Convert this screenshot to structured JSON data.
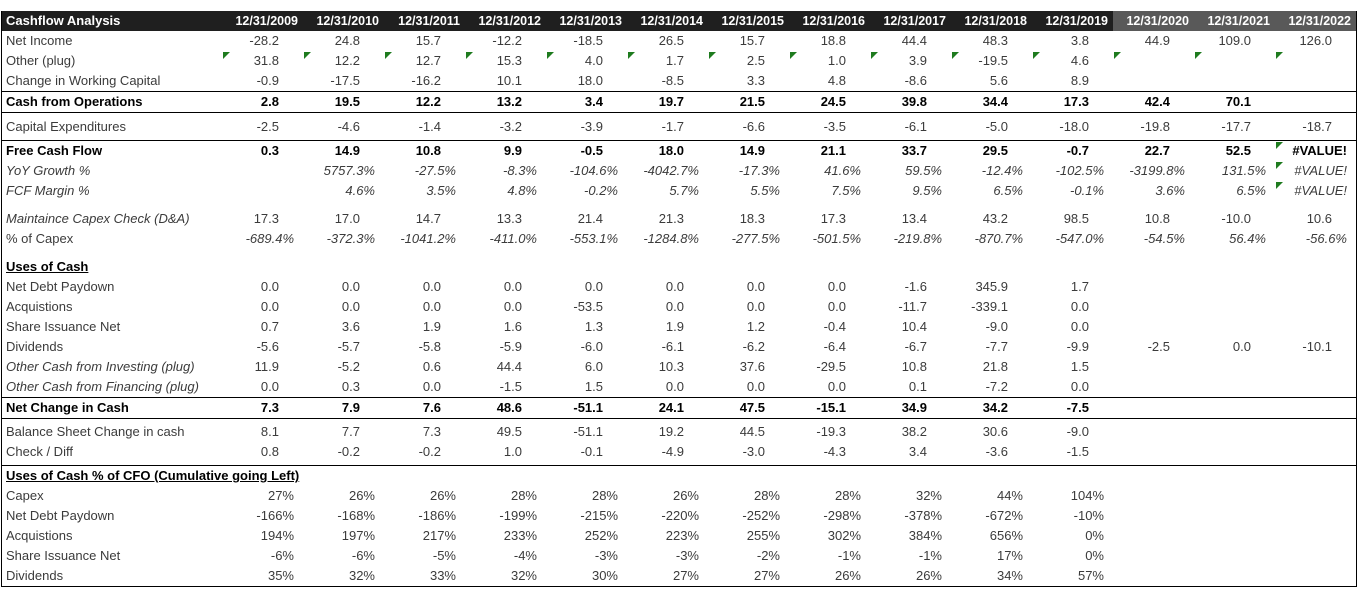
{
  "header": {
    "title": "Cashflow Analysis",
    "dates": [
      "12/31/2009",
      "12/31/2010",
      "12/31/2011",
      "12/31/2012",
      "12/31/2013",
      "12/31/2014",
      "12/31/2015",
      "12/31/2016",
      "12/31/2017",
      "12/31/2018",
      "12/31/2019",
      "12/31/2020",
      "12/31/2021",
      "12/31/2022"
    ],
    "gray_from_index": 11,
    "colors": {
      "dark_bg": "#1f1f1f",
      "gray_bg": "#595959",
      "text": "#ffffff"
    }
  },
  "flag_color": "#1e7b1e",
  "rows": [
    {
      "label": "Net Income",
      "cls": "",
      "values": [
        "-28.2",
        "24.8",
        "15.7",
        "-12.2",
        "-18.5",
        "26.5",
        "15.7",
        "18.8",
        "44.4",
        "48.3",
        "3.8",
        "44.9",
        "109.0",
        "126.0"
      ]
    },
    {
      "label": "Other (plug)",
      "cls": "",
      "flags": [
        0,
        1,
        2,
        3,
        4,
        5,
        6,
        7,
        8,
        9,
        10,
        11,
        12,
        13
      ],
      "values": [
        "31.8",
        "12.2",
        "12.7",
        "15.3",
        "4.0",
        "1.7",
        "2.5",
        "1.0",
        "3.9",
        "-19.5",
        "4.6",
        "",
        "",
        ""
      ]
    },
    {
      "label": "Change in Working Capital",
      "cls": "",
      "values": [
        "-0.9",
        "-17.5",
        "-16.2",
        "10.1",
        "18.0",
        "-8.5",
        "3.3",
        "4.8",
        "-8.6",
        "5.6",
        "8.9",
        "",
        "",
        ""
      ]
    },
    {
      "label": "Cash from Operations",
      "cls": "bold bt bb",
      "values": [
        "2.8",
        "19.5",
        "12.2",
        "13.2",
        "3.4",
        "19.7",
        "21.5",
        "24.5",
        "39.8",
        "34.4",
        "17.3",
        "42.4",
        "70.1",
        ""
      ]
    },
    {
      "label": "Capital Expenditures",
      "cls": "tall",
      "values": [
        "-2.5",
        "-4.6",
        "-1.4",
        "-3.2",
        "-3.9",
        "-1.7",
        "-6.6",
        "-3.5",
        "-6.1",
        "-5.0",
        "-18.0",
        "-19.8",
        "-17.7",
        "-18.7"
      ]
    },
    {
      "label": "Free Cash Flow",
      "cls": "bold bt",
      "flags": [
        13
      ],
      "values": [
        "0.3",
        "14.9",
        "10.8",
        "9.9",
        "-0.5",
        "18.0",
        "14.9",
        "21.1",
        "33.7",
        "29.5",
        "-0.7",
        "22.7",
        "52.5",
        "#VALUE!"
      ]
    },
    {
      "label": "YoY Growth %",
      "cls": "ital",
      "flags": [
        13
      ],
      "values": [
        "",
        "5757.3%",
        "-27.5%",
        "-8.3%",
        "-104.6%",
        "-4042.7%",
        "-17.3%",
        "41.6%",
        "59.5%",
        "-12.4%",
        "-102.5%",
        "-3199.8%",
        "131.5%",
        "#VALUE!"
      ]
    },
    {
      "label": "FCF Margin %",
      "cls": "ital",
      "flags": [
        13
      ],
      "values": [
        "",
        "4.6%",
        "3.5%",
        "4.8%",
        "-0.2%",
        "5.7%",
        "5.5%",
        "7.5%",
        "9.5%",
        "6.5%",
        "-0.1%",
        "3.6%",
        "6.5%",
        "#VALUE!"
      ]
    },
    {
      "label": "Maintaince Capex Check (D&A)",
      "cls": "lital gap-s",
      "values": [
        "17.3",
        "17.0",
        "14.7",
        "13.3",
        "21.4",
        "21.3",
        "18.3",
        "17.3",
        "13.4",
        "43.2",
        "98.5",
        "10.8",
        "-10.0",
        "10.6"
      ]
    },
    {
      "label": "% of Capex",
      "cls": "vital",
      "values": [
        "-689.4%",
        "-372.3%",
        "-1041.2%",
        "-411.0%",
        "-553.1%",
        "-1284.8%",
        "-277.5%",
        "-501.5%",
        "-219.8%",
        "-870.7%",
        "-547.0%",
        "-54.5%",
        "56.4%",
        "-56.6%"
      ]
    },
    {
      "label": "Uses of Cash",
      "cls": "section gap-s",
      "values": [
        "",
        "",
        "",
        "",
        "",
        "",
        "",
        "",
        "",
        "",
        "",
        "",
        "",
        ""
      ]
    },
    {
      "label": "Net Debt Paydown",
      "cls": "",
      "values": [
        "0.0",
        "0.0",
        "0.0",
        "0.0",
        "0.0",
        "0.0",
        "0.0",
        "0.0",
        "-1.6",
        "345.9",
        "1.7",
        "",
        "",
        ""
      ]
    },
    {
      "label": "Acquistions",
      "cls": "",
      "values": [
        "0.0",
        "0.0",
        "0.0",
        "0.0",
        "-53.5",
        "0.0",
        "0.0",
        "0.0",
        "-11.7",
        "-339.1",
        "0.0",
        "",
        "",
        ""
      ]
    },
    {
      "label": "Share Issuance Net",
      "cls": "",
      "values": [
        "0.7",
        "3.6",
        "1.9",
        "1.6",
        "1.3",
        "1.9",
        "1.2",
        "-0.4",
        "10.4",
        "-9.0",
        "0.0",
        "",
        "",
        ""
      ]
    },
    {
      "label": "Dividends",
      "cls": "",
      "values": [
        "-5.6",
        "-5.7",
        "-5.8",
        "-5.9",
        "-6.0",
        "-6.1",
        "-6.2",
        "-6.4",
        "-6.7",
        "-7.7",
        "-9.9",
        "-2.5",
        "0.0",
        "-10.1"
      ]
    },
    {
      "label": "Other Cash from Investing (plug)",
      "cls": "lital",
      "values": [
        "11.9",
        "-5.2",
        "0.6",
        "44.4",
        "6.0",
        "10.3",
        "37.6",
        "-29.5",
        "10.8",
        "21.8",
        "1.5",
        "",
        "",
        ""
      ]
    },
    {
      "label": "Other Cash from Financing (plug)",
      "cls": "lital",
      "values": [
        "0.0",
        "0.3",
        "0.0",
        "-1.5",
        "1.5",
        "0.0",
        "0.0",
        "0.0",
        "0.1",
        "-7.2",
        "0.0",
        "",
        "",
        ""
      ]
    },
    {
      "label": "Net Change in Cash",
      "cls": "bold bt bb",
      "values": [
        "7.3",
        "7.9",
        "7.6",
        "48.6",
        "-51.1",
        "24.1",
        "47.5",
        "-15.1",
        "34.9",
        "34.2",
        "-7.5",
        "",
        "",
        ""
      ]
    },
    {
      "label": "Balance Sheet Change in cash",
      "cls": "gap-xs",
      "values": [
        "8.1",
        "7.7",
        "7.3",
        "49.5",
        "-51.1",
        "19.2",
        "44.5",
        "-19.3",
        "38.2",
        "30.6",
        "-9.0",
        "",
        "",
        ""
      ]
    },
    {
      "label": "Check / Diff",
      "cls": "",
      "values": [
        "0.8",
        "-0.2",
        "-0.2",
        "1.0",
        "-0.1",
        "-4.9",
        "-3.0",
        "-4.3",
        "3.4",
        "-3.6",
        "-1.5",
        "",
        "",
        ""
      ]
    },
    {
      "label": "Uses of Cash % of CFO (Cumulative going Left)",
      "cls": "section bt gap-xs",
      "values": [
        "",
        "",
        "",
        "",
        "",
        "",
        "",
        "",
        "",
        "",
        "",
        "",
        "",
        ""
      ]
    },
    {
      "label": "Capex",
      "cls": "",
      "values": [
        "27%",
        "26%",
        "26%",
        "28%",
        "28%",
        "26%",
        "28%",
        "28%",
        "32%",
        "44%",
        "104%",
        "",
        "",
        ""
      ]
    },
    {
      "label": "Net Debt Paydown",
      "cls": "",
      "values": [
        "-166%",
        "-168%",
        "-186%",
        "-199%",
        "-215%",
        "-220%",
        "-252%",
        "-298%",
        "-378%",
        "-672%",
        "-10%",
        "",
        "",
        ""
      ]
    },
    {
      "label": "Acquistions",
      "cls": "",
      "values": [
        "194%",
        "197%",
        "217%",
        "233%",
        "252%",
        "223%",
        "255%",
        "302%",
        "384%",
        "656%",
        "0%",
        "",
        "",
        ""
      ]
    },
    {
      "label": "Share Issuance Net",
      "cls": "",
      "values": [
        "-6%",
        "-6%",
        "-5%",
        "-4%",
        "-3%",
        "-3%",
        "-2%",
        "-1%",
        "-1%",
        "17%",
        "0%",
        "",
        "",
        ""
      ]
    },
    {
      "label": "Dividends",
      "cls": "",
      "values": [
        "35%",
        "32%",
        "33%",
        "32%",
        "30%",
        "27%",
        "27%",
        "26%",
        "26%",
        "34%",
        "57%",
        "",
        "",
        ""
      ]
    }
  ]
}
